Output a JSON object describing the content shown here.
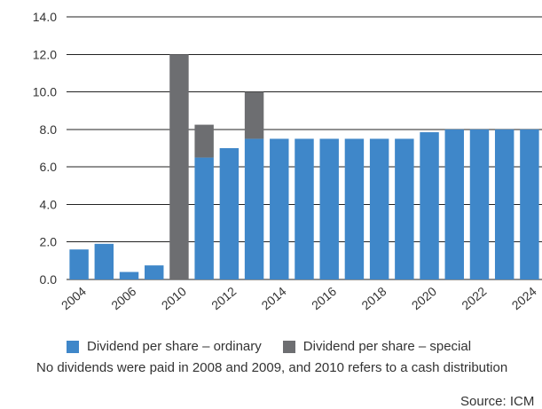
{
  "chart_data": {
    "type": "bar",
    "stacked": true,
    "categories": [
      "2004",
      "2005",
      "2006",
      "2007",
      "2010",
      "2011",
      "2012",
      "2013",
      "2014",
      "2015",
      "2016",
      "2017",
      "2018",
      "2019",
      "2020",
      "2021",
      "2022",
      "2023",
      "2024"
    ],
    "x_tick_labels": [
      "2004",
      "2006",
      "2010",
      "2012",
      "2014",
      "2016",
      "2018",
      "2020",
      "2022",
      "2024"
    ],
    "series": [
      {
        "name": "Dividend per share – ordinary",
        "color": "#3f87c9",
        "values": [
          1.6,
          1.9,
          0.4,
          0.75,
          0,
          6.5,
          7.0,
          7.5,
          7.5,
          7.5,
          7.5,
          7.5,
          7.5,
          7.5,
          7.85,
          8.0,
          8.0,
          8.0,
          8.0
        ]
      },
      {
        "name": "Dividend per share – special",
        "color": "#6d6e71",
        "values": [
          0,
          0,
          0,
          0,
          12.0,
          1.75,
          0,
          2.5,
          0,
          0,
          0,
          0,
          0,
          0,
          0,
          0,
          0,
          0,
          0
        ]
      }
    ],
    "ylim": [
      0,
      14
    ],
    "y_ticks": [
      "0.0",
      "2.0",
      "4.0",
      "6.0",
      "8.0",
      "10.0",
      "12.0",
      "14.0"
    ],
    "grid": true,
    "legend_position": "bottom"
  },
  "legend": {
    "ordinary": "Dividend per share – ordinary",
    "special": "Dividend per share – special"
  },
  "note": "No dividends were paid in 2008 and 2009, and 2010 refers to a cash distribution",
  "source": "Source: ICM"
}
